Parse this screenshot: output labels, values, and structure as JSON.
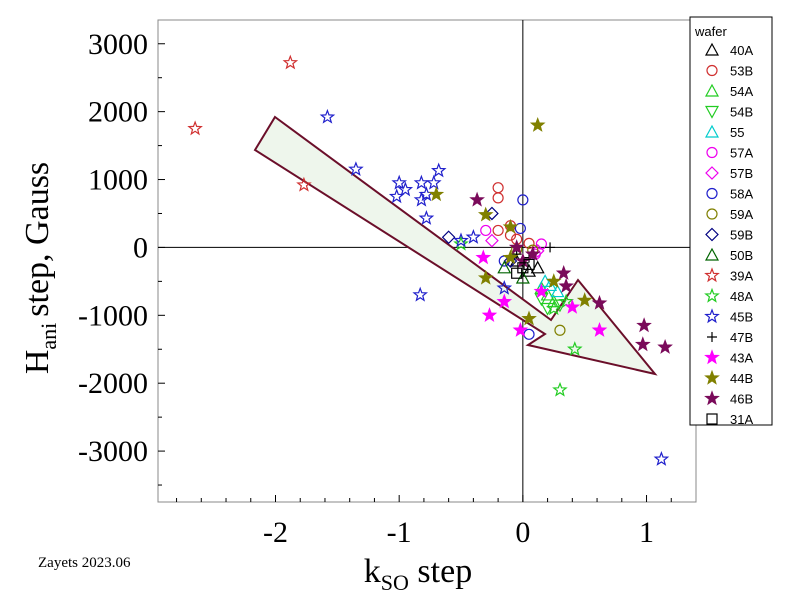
{
  "chart_data": {
    "type": "scatter",
    "xlabel": {
      "main": "k",
      "sub": "SO",
      "rest": " step"
    },
    "ylabel": {
      "main": "H",
      "sub": "ani",
      "rest": "step, Gauss"
    },
    "xlim": [
      -2.95,
      1.4
    ],
    "ylim": [
      -3750,
      3350
    ],
    "xticks": [
      -2,
      -1,
      0,
      1
    ],
    "yticks": [
      3000,
      2000,
      1000,
      0,
      -1000,
      -2000,
      -3000
    ],
    "xtick_labels": [
      "-2",
      "-1",
      "0",
      "1"
    ],
    "ytick_labels": [
      "3000",
      "2000",
      "1000",
      "0",
      "-1000",
      "-2000",
      "-3000"
    ],
    "legend_title": "wafer",
    "legend_position": "right",
    "credit": "Zayets 2023.06",
    "zero_lines": true,
    "arrow_color": "#6b0f2a",
    "arrow_fill": "#eef6ec",
    "series": [
      {
        "name": "40A",
        "marker": "triangle-up",
        "filled": false,
        "color": "#000000",
        "points": [
          [
            -0.05,
            -200
          ],
          [
            0.05,
            -350
          ],
          [
            0.12,
            -300
          ]
        ]
      },
      {
        "name": "53B",
        "marker": "circle",
        "filled": false,
        "color": "#d03030",
        "points": [
          [
            -0.2,
            880
          ],
          [
            -0.2,
            730
          ],
          [
            -0.1,
            320
          ],
          [
            -0.2,
            250
          ],
          [
            -0.05,
            120
          ],
          [
            0.05,
            60
          ],
          [
            -0.1,
            180
          ]
        ]
      },
      {
        "name": "54A",
        "marker": "triangle-up",
        "filled": false,
        "color": "#22cc22",
        "points": [
          [
            0.2,
            -700
          ],
          [
            0.25,
            -800
          ],
          [
            0.15,
            -600
          ]
        ]
      },
      {
        "name": "54B",
        "marker": "triangle-down",
        "filled": false,
        "color": "#22cc22",
        "points": [
          [
            0.2,
            -900
          ],
          [
            0.3,
            -850
          ],
          [
            0.15,
            -760
          ]
        ]
      },
      {
        "name": "55",
        "marker": "triangle-up",
        "filled": false,
        "color": "#00cccc",
        "points": [
          [
            0.18,
            -500
          ],
          [
            0.28,
            -650
          ],
          [
            0.22,
            -560
          ]
        ]
      },
      {
        "name": "57A",
        "marker": "circle",
        "filled": false,
        "color": "#ee00ee",
        "points": [
          [
            -0.3,
            250
          ],
          [
            0.15,
            50
          ],
          [
            0.1,
            -100
          ]
        ]
      },
      {
        "name": "57B",
        "marker": "diamond",
        "filled": false,
        "color": "#ee00ee",
        "points": [
          [
            -0.25,
            100
          ],
          [
            0.12,
            -50
          ]
        ]
      },
      {
        "name": "58A",
        "marker": "circle",
        "filled": false,
        "color": "#2020cc",
        "points": [
          [
            0.0,
            700
          ],
          [
            -0.02,
            280
          ],
          [
            0.05,
            -1280
          ],
          [
            -0.15,
            -200
          ]
        ]
      },
      {
        "name": "59A",
        "marker": "circle",
        "filled": false,
        "color": "#808000",
        "points": [
          [
            0.3,
            -1220
          ],
          [
            -0.05,
            -30
          ],
          [
            0.08,
            -40
          ]
        ]
      },
      {
        "name": "59B",
        "marker": "diamond",
        "filled": false,
        "color": "#000080",
        "points": [
          [
            -0.6,
            150
          ],
          [
            -0.25,
            500
          ],
          [
            -0.1,
            -200
          ]
        ]
      },
      {
        "name": "50B",
        "marker": "triangle-up",
        "filled": false,
        "color": "#006400",
        "points": [
          [
            -0.15,
            -300
          ],
          [
            0.0,
            -450
          ]
        ]
      },
      {
        "name": "39A",
        "marker": "star",
        "filled": false,
        "color": "#d03030",
        "points": [
          [
            -1.88,
            2720
          ],
          [
            -2.65,
            1750
          ],
          [
            -1.77,
            920
          ]
        ]
      },
      {
        "name": "48A",
        "marker": "star",
        "filled": false,
        "color": "#22cc22",
        "points": [
          [
            0.3,
            -2100
          ],
          [
            0.42,
            -1500
          ],
          [
            0.25,
            -900
          ],
          [
            0.35,
            -800
          ],
          [
            -0.5,
            50
          ]
        ]
      },
      {
        "name": "45B",
        "marker": "star",
        "filled": false,
        "color": "#2020cc",
        "points": [
          [
            -1.58,
            1920
          ],
          [
            -1.35,
            1150
          ],
          [
            -1.0,
            950
          ],
          [
            -0.95,
            850
          ],
          [
            -1.02,
            750
          ],
          [
            -0.82,
            950
          ],
          [
            -0.78,
            780
          ],
          [
            -0.68,
            1130
          ],
          [
            -0.72,
            950
          ],
          [
            -0.78,
            430
          ],
          [
            -0.82,
            700
          ],
          [
            -0.4,
            150
          ],
          [
            -0.5,
            100
          ],
          [
            -0.83,
            -700
          ],
          [
            1.12,
            -3120
          ],
          [
            -0.15,
            -600
          ]
        ]
      },
      {
        "name": "47B",
        "marker": "plus",
        "filled": false,
        "color": "#000000",
        "points": [
          [
            0.22,
            0
          ],
          [
            -0.05,
            -100
          ],
          [
            0.05,
            -150
          ]
        ]
      },
      {
        "name": "43A",
        "marker": "star",
        "filled": true,
        "color": "#ff00ff",
        "points": [
          [
            -0.27,
            -1000
          ],
          [
            -0.15,
            -800
          ],
          [
            -0.02,
            -1220
          ],
          [
            0.4,
            -880
          ],
          [
            0.62,
            -1220
          ],
          [
            -0.32,
            -150
          ],
          [
            0.15,
            -650
          ]
        ]
      },
      {
        "name": "44B",
        "marker": "star",
        "filled": true,
        "color": "#808000",
        "points": [
          [
            0.12,
            1800
          ],
          [
            -0.7,
            780
          ],
          [
            -0.3,
            480
          ],
          [
            -0.1,
            300
          ],
          [
            -0.3,
            -450
          ],
          [
            0.05,
            -1050
          ],
          [
            0.5,
            -780
          ],
          [
            0.25,
            -500
          ],
          [
            -0.1,
            -150
          ]
        ]
      },
      {
        "name": "46B",
        "marker": "star",
        "filled": true,
        "color": "#7a0a5a",
        "points": [
          [
            -0.37,
            700
          ],
          [
            -0.05,
            0
          ],
          [
            0.08,
            -100
          ],
          [
            0.33,
            -380
          ],
          [
            0.35,
            -570
          ],
          [
            0.62,
            -820
          ],
          [
            0.98,
            -1150
          ],
          [
            0.97,
            -1430
          ],
          [
            1.15,
            -1470
          ],
          [
            0.0,
            -200
          ]
        ]
      },
      {
        "name": "31A",
        "marker": "square",
        "filled": false,
        "color": "#000000",
        "points": [
          [
            -0.05,
            -380
          ],
          [
            0.0,
            -300
          ],
          [
            0.05,
            -250
          ]
        ]
      }
    ]
  }
}
